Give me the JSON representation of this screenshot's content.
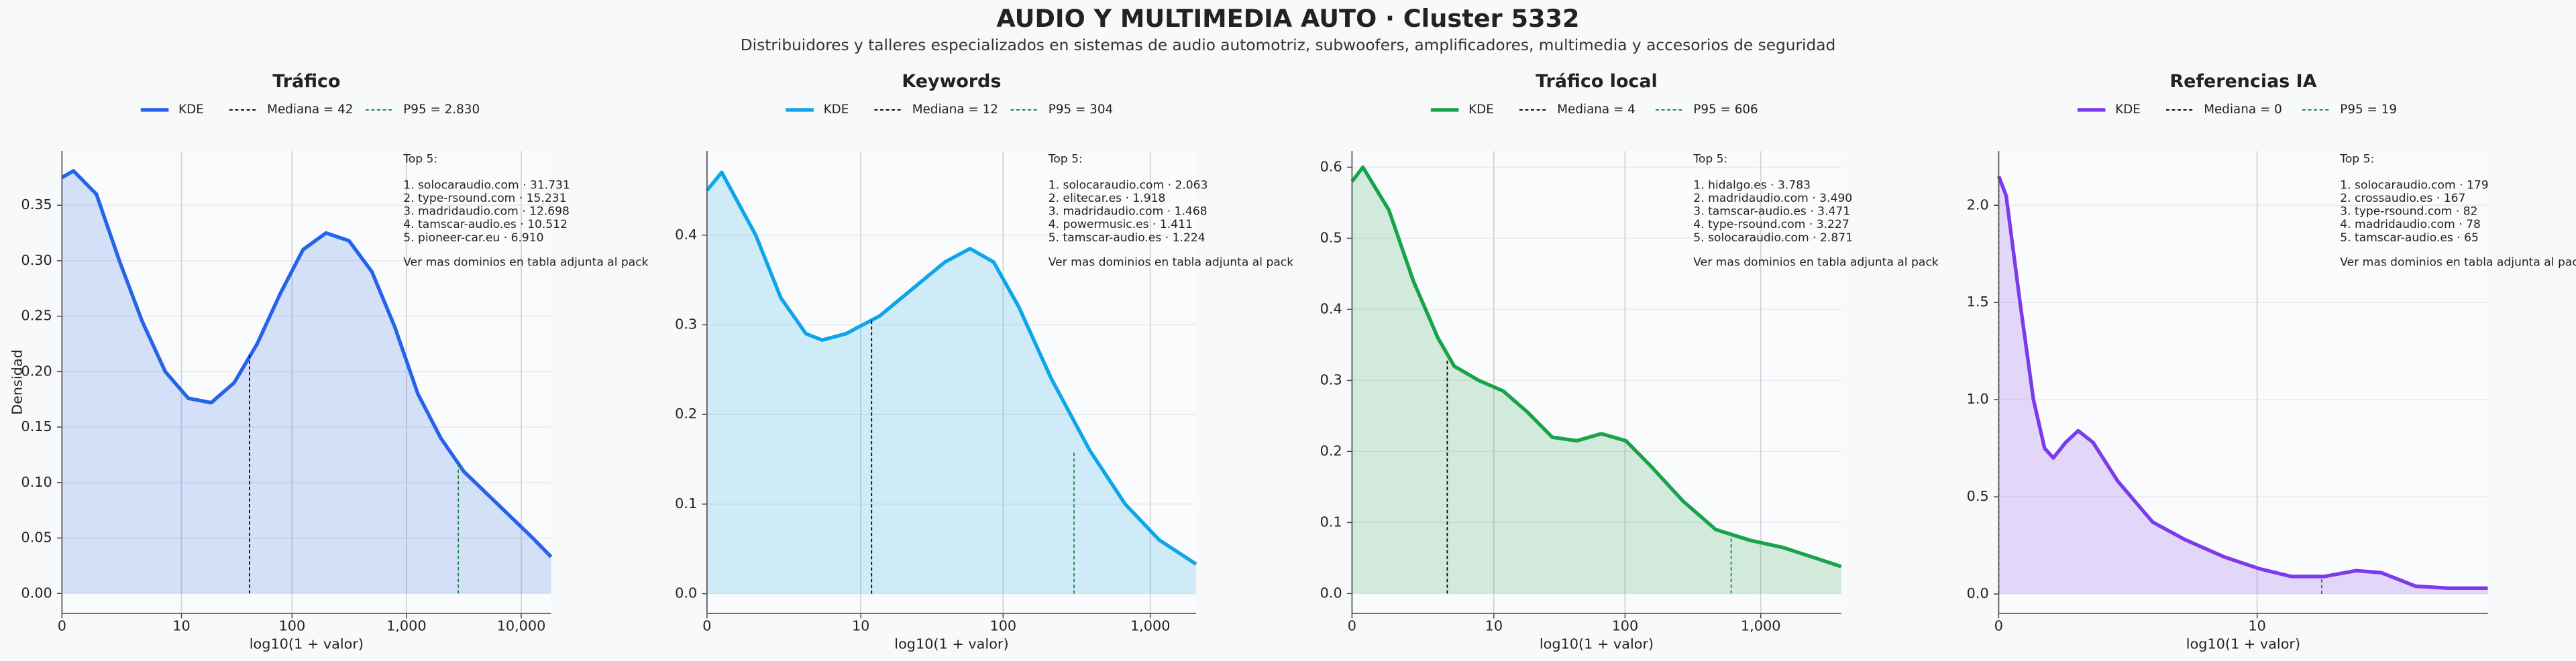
{
  "title": "AUDIO Y MULTIMEDIA AUTO · Cluster 5332",
  "subtitle": "Distribuidores y talleres especializados en sistemas de audio automotriz, subwoofers, amplificadores, multimedia y accesorios de seguridad",
  "chart_data": [
    {
      "type": "line",
      "title": "Tráfico",
      "xlabel": "log10(1 + valor)",
      "ylabel": "Densidad",
      "grid": true,
      "x": [
        0,
        0.1,
        0.3,
        0.5,
        0.7,
        0.9,
        1.1,
        1.3,
        1.5,
        1.7,
        1.9,
        2.1,
        2.3,
        2.5,
        2.7,
        2.9,
        3.1,
        3.3,
        3.5,
        3.7,
        3.9,
        4.1,
        4.26
      ],
      "series": [
        {
          "name": "KDE",
          "color": "#2563eb",
          "values": [
            0.375,
            0.381,
            0.36,
            0.3,
            0.245,
            0.2,
            0.176,
            0.172,
            0.19,
            0.225,
            0.27,
            0.31,
            0.325,
            0.318,
            0.29,
            0.24,
            0.18,
            0.14,
            0.11,
            0.09,
            0.07,
            0.05,
            0.033
          ]
        }
      ],
      "markers": [
        {
          "name": "Mediana = 42",
          "color": "#000000",
          "x": 1.633,
          "y": 0.215
        },
        {
          "name": "P95 = 2.830",
          "color": "#15803d",
          "x": 3.452,
          "y": 0.115
        }
      ],
      "xlim": [
        0,
        4.26
      ],
      "xticks": [
        0,
        {
          "value": 1.041,
          "label": "10"
        },
        {
          "value": 2.004,
          "label": "100"
        },
        {
          "value": 3,
          "label": "1,000"
        },
        {
          "value": 4,
          "label": "10,000"
        }
      ],
      "ylim": [
        -0.018,
        0.399
      ],
      "yticks": [
        {
          "value": 0,
          "label": "0.00"
        },
        0.05,
        {
          "value": 0.1,
          "label": "0.10"
        },
        0.15,
        {
          "value": 0.2,
          "label": "0.20"
        },
        0.25,
        {
          "value": 0.3,
          "label": "0.30"
        },
        0.35
      ],
      "annotation": {
        "heading": "Top 5:",
        "lines": [
          "1. solocaraudio.com · 31.731",
          "2. type-rsound.com · 15.231",
          "3. madridaudio.com · 12.698",
          "4. tamscar-audio.es · 10.512",
          "5. pioneer-car.eu · 6.910"
        ],
        "footer": "Ver mas dominios en tabla adjunta al pack"
      }
    },
    {
      "type": "line",
      "title": "Keywords",
      "xlabel": "log10(1 + valor)",
      "grid": true,
      "x": [
        0,
        0.1,
        0.33,
        0.5,
        0.67,
        0.78,
        0.94,
        1.17,
        1.39,
        1.61,
        1.78,
        1.94,
        2.11,
        2.33,
        2.59,
        2.83,
        3.06,
        3.31
      ],
      "series": [
        {
          "name": "KDE",
          "color": "#0ea5e9",
          "values": [
            0.45,
            0.47,
            0.4,
            0.33,
            0.29,
            0.283,
            0.29,
            0.31,
            0.34,
            0.37,
            0.385,
            0.37,
            0.32,
            0.24,
            0.16,
            0.1,
            0.06,
            0.033
          ]
        }
      ],
      "markers": [
        {
          "name": "Mediana = 12",
          "color": "#000000",
          "x": 1.114,
          "y": 0.305
        },
        {
          "name": "P95 = 304",
          "color": "#15803d",
          "x": 2.484,
          "y": 0.16
        }
      ],
      "xlim": [
        0,
        3.31
      ],
      "xticks": [
        0,
        {
          "value": 1.041,
          "label": "10"
        },
        {
          "value": 2.004,
          "label": "100"
        },
        {
          "value": 3,
          "label": "1,000"
        }
      ],
      "ylim": [
        -0.022,
        0.494
      ],
      "yticks": [
        {
          "value": 0,
          "label": "0.0"
        },
        0.1,
        0.2,
        0.3,
        0.4
      ],
      "annotation": {
        "heading": "Top 5:",
        "lines": [
          "1. solocaraudio.com · 2.063",
          "2. elitecar.es · 1.918",
          "3. madridaudio.com · 1.468",
          "4. powermusic.es · 1.411",
          "5. tamscar-audio.es · 1.224"
        ],
        "footer": "Ver mas dominios en tabla adjunta al pack"
      }
    },
    {
      "type": "line",
      "title": "Tráfico local",
      "xlabel": "log10(1 + valor)",
      "grid": true,
      "x": [
        0,
        0.08,
        0.27,
        0.45,
        0.63,
        0.75,
        0.93,
        1.11,
        1.29,
        1.47,
        1.65,
        1.83,
        2.01,
        2.19,
        2.43,
        2.67,
        2.92,
        3.16,
        3.4,
        3.59
      ],
      "series": [
        {
          "name": "KDE",
          "color": "#16a34a",
          "values": [
            0.58,
            0.6,
            0.54,
            0.44,
            0.36,
            0.32,
            0.3,
            0.285,
            0.255,
            0.22,
            0.215,
            0.225,
            0.215,
            0.18,
            0.13,
            0.09,
            0.075,
            0.065,
            0.05,
            0.038
          ]
        }
      ],
      "markers": [
        {
          "name": "Mediana = 4",
          "color": "#000000",
          "x": 0.699,
          "y": 0.33
        },
        {
          "name": "P95 = 606",
          "color": "#15803d",
          "x": 2.783,
          "y": 0.08
        }
      ],
      "xlim": [
        0,
        3.59
      ],
      "xticks": [
        0,
        {
          "value": 1.041,
          "label": "10"
        },
        {
          "value": 2.004,
          "label": "100"
        },
        {
          "value": 3,
          "label": "1,000"
        }
      ],
      "ylim": [
        -0.028,
        0.623
      ],
      "yticks": [
        {
          "value": 0,
          "label": "0.0"
        },
        0.1,
        0.2,
        0.3,
        0.4,
        0.5,
        0.6
      ],
      "annotation": {
        "heading": "Top 5:",
        "lines": [
          "1. hidalgo.es · 3.783",
          "2. madridaudio.com · 3.490",
          "3. tamscar-audio.es · 3.471",
          "4. type-rsound.com · 3.227",
          "5. solocaraudio.com · 2.871"
        ],
        "footer": "Ver mas dominios en tabla adjunta al pack"
      }
    },
    {
      "type": "line",
      "title": "Referencias IA",
      "xlabel": "log10(1 + valor)",
      "grid": true,
      "x": [
        0,
        0.03,
        0.086,
        0.14,
        0.185,
        0.22,
        0.27,
        0.32,
        0.38,
        0.48,
        0.62,
        0.75,
        0.91,
        1.05,
        1.18,
        1.31,
        1.44,
        1.54,
        1.68,
        1.81,
        1.97
      ],
      "series": [
        {
          "name": "KDE",
          "color": "#7c3aed",
          "values": [
            2.15,
            2.05,
            1.5,
            1.0,
            0.75,
            0.7,
            0.78,
            0.84,
            0.78,
            0.58,
            0.37,
            0.28,
            0.19,
            0.13,
            0.09,
            0.09,
            0.12,
            0.11,
            0.04,
            0.03,
            0.03
          ]
        }
      ],
      "markers": [
        {
          "name": "Mediana = 0",
          "color": "#000000",
          "x": 0,
          "y": 2.15
        },
        {
          "name": "P95 = 19",
          "color": "#15803d",
          "x": 1.301,
          "y": 0.09
        }
      ],
      "xlim": [
        0,
        1.97
      ],
      "xticks": [
        0,
        {
          "value": 1.041,
          "label": "10"
        }
      ],
      "ylim": [
        -0.1,
        2.28
      ],
      "yticks": [
        {
          "value": 0,
          "label": "0.0"
        },
        0.5,
        {
          "value": 1,
          "label": "1.0"
        },
        1.5,
        {
          "value": 2,
          "label": "2.0"
        }
      ],
      "annotation": {
        "heading": "Top 5:",
        "lines": [
          "1. solocaraudio.com · 179",
          "2. crossaudio.es · 167",
          "3. type-rsound.com · 82",
          "4. madridaudio.com · 78",
          "5. tamscar-audio.es · 65"
        ],
        "footer": "Ver mas dominios en tabla adjunta al pack"
      }
    }
  ]
}
